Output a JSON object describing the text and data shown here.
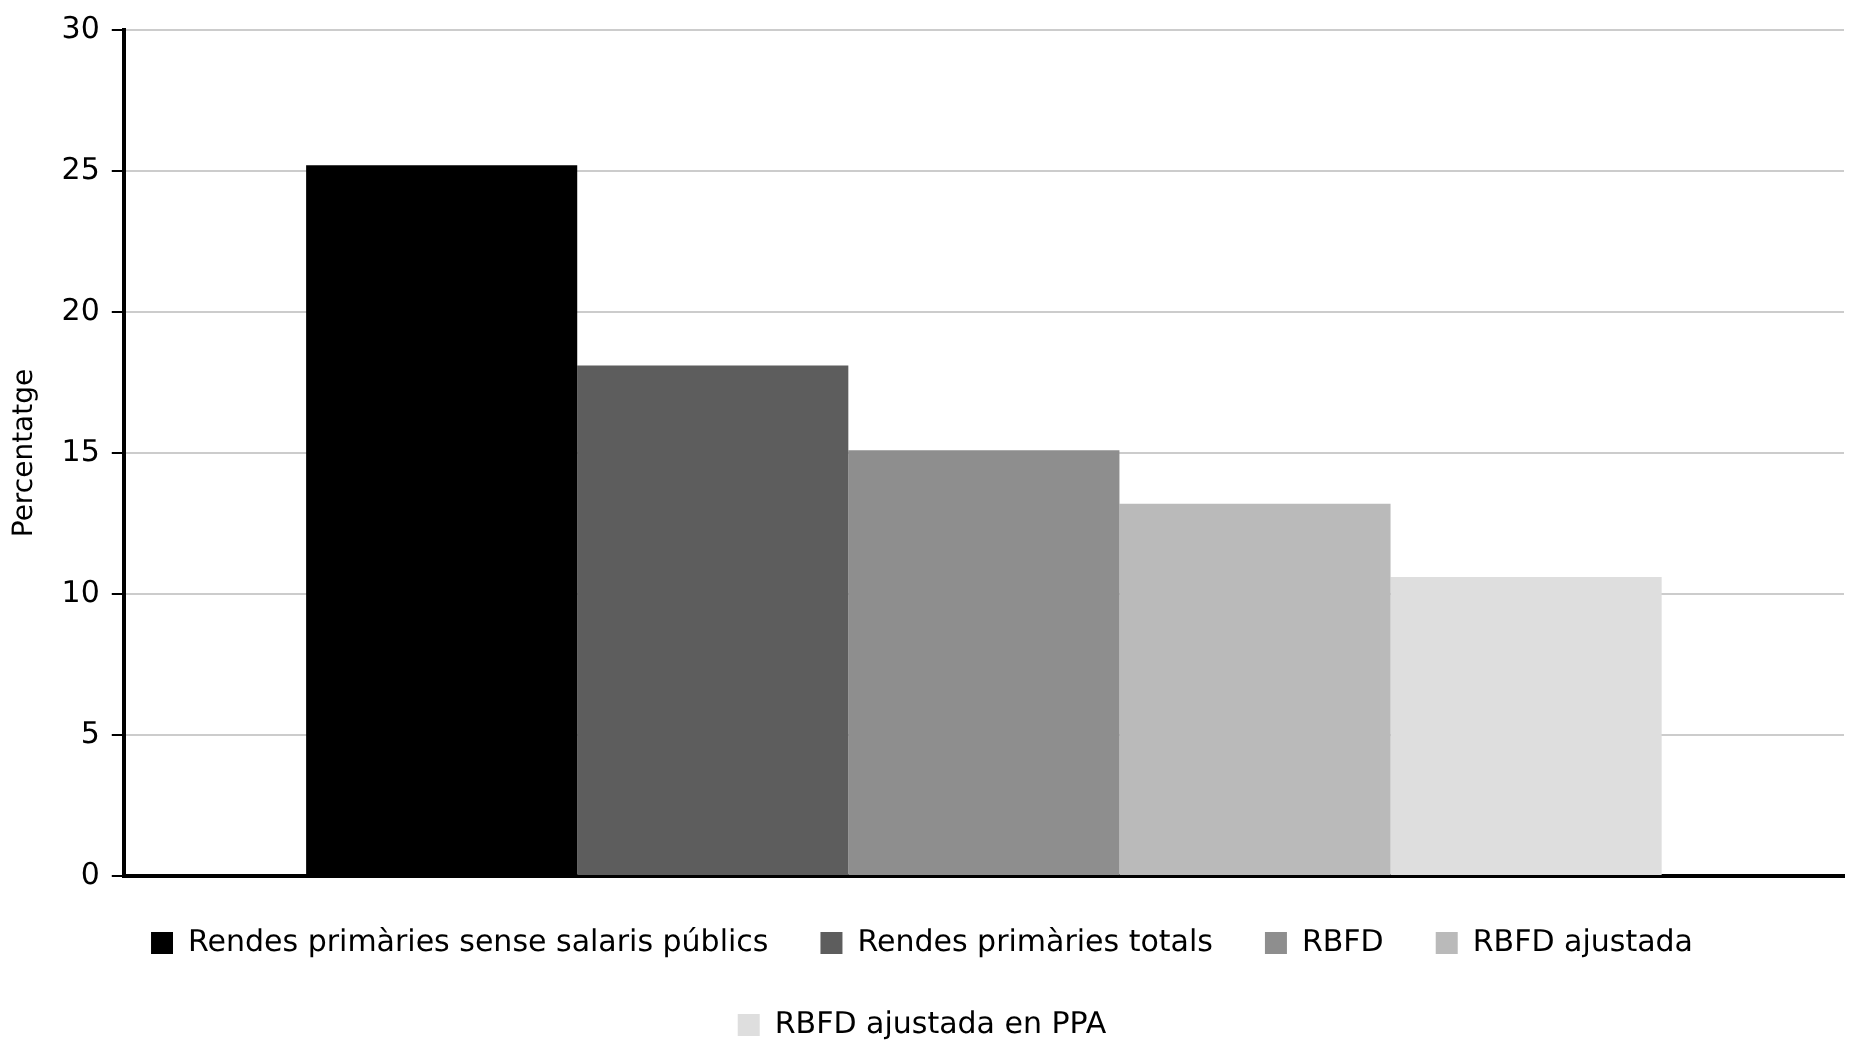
{
  "chart_data": {
    "type": "bar",
    "ylabel": "Percentatge",
    "categories": [
      null
    ],
    "series": [
      {
        "name": "Rendes primàries sense salaris públics",
        "color": "#000000",
        "values": [
          25.2
        ]
      },
      {
        "name": "Rendes primàries totals",
        "color": "#5d5d5d",
        "values": [
          18.1
        ]
      },
      {
        "name": "RBFD",
        "color": "#8e8e8e",
        "values": [
          15.1
        ]
      },
      {
        "name": "RBFD ajustada",
        "color": "#bababa",
        "values": [
          13.2
        ]
      },
      {
        "name": "RBFD ajustada en PPA",
        "color": "#dedede",
        "values": [
          10.6
        ]
      }
    ],
    "ylim": [
      0,
      30
    ],
    "yticks": [
      0,
      5,
      10,
      15,
      20,
      25,
      30
    ],
    "grid": "y",
    "legend": "bottom"
  }
}
